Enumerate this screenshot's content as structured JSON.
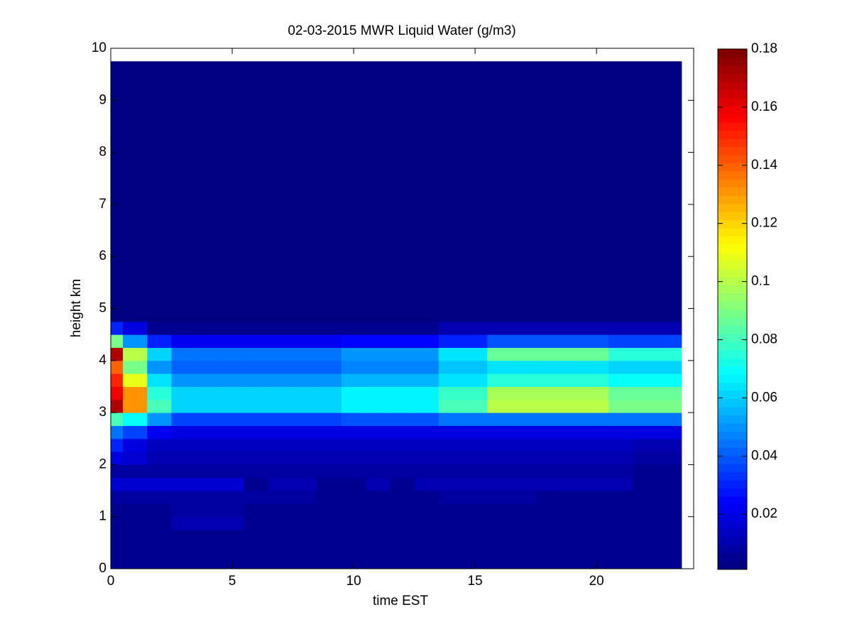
{
  "chart_data": {
    "type": "heatmap",
    "title": "02-03-2015 MWR Liquid Water (g/m3)",
    "x_label": "time EST",
    "y_label": "height km",
    "xlim": [
      0,
      24
    ],
    "xticks": [
      0,
      5,
      10,
      15,
      20
    ],
    "ylim": [
      0,
      10
    ],
    "yticks": [
      0,
      1,
      2,
      3,
      4,
      5,
      6,
      7,
      8,
      9,
      10
    ],
    "clim": [
      0.001,
      0.18
    ],
    "cticks": [
      0.02,
      0.04,
      0.06,
      0.08,
      0.1,
      0.12,
      0.14,
      0.16,
      0.18
    ],
    "colormap": "jet",
    "x_bins": [
      0,
      0.5,
      1.5,
      2.5,
      3.5,
      4.5,
      5.5,
      6.5,
      7.5,
      8.5,
      9.5,
      10.5,
      11.5,
      12.5,
      13.5,
      14.5,
      15.5,
      16.5,
      17.5,
      18.5,
      19.5,
      20.5,
      21.5,
      22.5,
      23.5
    ],
    "y_bins": [
      0,
      0.25,
      0.5,
      0.75,
      1,
      1.25,
      1.5,
      1.75,
      2,
      2.25,
      2.5,
      2.75,
      3,
      3.25,
      3.5,
      3.75,
      4,
      4.25,
      4.5,
      4.75,
      9.75
    ],
    "values": [
      [
        0.004,
        0.004,
        0.004,
        0.004,
        0.004,
        0.004,
        0.004,
        0.004,
        0.004,
        0.004,
        0.004,
        0.004,
        0.004,
        0.004,
        0.004,
        0.004,
        0.004,
        0.004,
        0.004,
        0.004,
        0.004,
        0.004,
        0.004,
        0.004
      ],
      [
        0.004,
        0.004,
        0.004,
        0.004,
        0.004,
        0.004,
        0.004,
        0.004,
        0.004,
        0.004,
        0.004,
        0.004,
        0.004,
        0.004,
        0.004,
        0.004,
        0.004,
        0.004,
        0.004,
        0.004,
        0.004,
        0.004,
        0.004,
        0.004
      ],
      [
        0.004,
        0.004,
        0.004,
        0.004,
        0.004,
        0.004,
        0.004,
        0.004,
        0.004,
        0.004,
        0.004,
        0.004,
        0.004,
        0.004,
        0.004,
        0.004,
        0.004,
        0.004,
        0.004,
        0.004,
        0.004,
        0.004,
        0.004,
        0.004
      ],
      [
        0.004,
        0.004,
        0.004,
        0.01,
        0.01,
        0.01,
        0.004,
        0.004,
        0.004,
        0.004,
        0.004,
        0.004,
        0.004,
        0.004,
        0.004,
        0.004,
        0.004,
        0.004,
        0.004,
        0.004,
        0.004,
        0.004,
        0.004,
        0.004
      ],
      [
        0.004,
        0.004,
        0.004,
        0.008,
        0.008,
        0.008,
        0.004,
        0.004,
        0.004,
        0.004,
        0.004,
        0.004,
        0.004,
        0.004,
        0.004,
        0.004,
        0.004,
        0.004,
        0.004,
        0.004,
        0.004,
        0.004,
        0.004,
        0.004
      ],
      [
        0.008,
        0.008,
        0.008,
        0.008,
        0.008,
        0.008,
        0.008,
        0.008,
        0.008,
        0.004,
        0.004,
        0.004,
        0.004,
        0.004,
        0.008,
        0.008,
        0.008,
        0.008,
        0.004,
        0.004,
        0.004,
        0.004,
        0.004,
        0.004
      ],
      [
        0.015,
        0.015,
        0.015,
        0.015,
        0.015,
        0.015,
        0.006,
        0.012,
        0.012,
        0.004,
        0.004,
        0.012,
        0.004,
        0.012,
        0.012,
        0.012,
        0.012,
        0.012,
        0.012,
        0.012,
        0.012,
        0.012,
        0.004,
        0.004
      ],
      [
        0.008,
        0.008,
        0.008,
        0.008,
        0.008,
        0.008,
        0.008,
        0.008,
        0.008,
        0.008,
        0.008,
        0.008,
        0.008,
        0.008,
        0.008,
        0.008,
        0.008,
        0.008,
        0.008,
        0.008,
        0.008,
        0.008,
        0.004,
        0.004
      ],
      [
        0.02,
        0.015,
        0.012,
        0.012,
        0.012,
        0.012,
        0.012,
        0.012,
        0.012,
        0.012,
        0.012,
        0.012,
        0.012,
        0.012,
        0.012,
        0.012,
        0.012,
        0.012,
        0.012,
        0.012,
        0.012,
        0.012,
        0.008,
        0.008
      ],
      [
        0.03,
        0.02,
        0.014,
        0.014,
        0.014,
        0.014,
        0.014,
        0.014,
        0.014,
        0.014,
        0.014,
        0.014,
        0.014,
        0.014,
        0.014,
        0.014,
        0.014,
        0.014,
        0.014,
        0.014,
        0.014,
        0.014,
        0.012,
        0.012
      ],
      [
        0.045,
        0.035,
        0.022,
        0.018,
        0.018,
        0.018,
        0.018,
        0.018,
        0.018,
        0.018,
        0.018,
        0.018,
        0.018,
        0.018,
        0.02,
        0.02,
        0.02,
        0.02,
        0.02,
        0.02,
        0.02,
        0.02,
        0.02,
        0.02
      ],
      [
        0.08,
        0.07,
        0.05,
        0.035,
        0.035,
        0.035,
        0.035,
        0.035,
        0.035,
        0.035,
        0.04,
        0.04,
        0.04,
        0.04,
        0.045,
        0.045,
        0.045,
        0.045,
        0.045,
        0.045,
        0.045,
        0.045,
        0.045,
        0.045
      ],
      [
        0.17,
        0.13,
        0.08,
        0.062,
        0.062,
        0.062,
        0.062,
        0.062,
        0.062,
        0.062,
        0.068,
        0.068,
        0.068,
        0.068,
        0.08,
        0.08,
        0.1,
        0.1,
        0.1,
        0.1,
        0.1,
        0.088,
        0.088,
        0.088
      ],
      [
        0.16,
        0.13,
        0.075,
        0.06,
        0.06,
        0.06,
        0.06,
        0.06,
        0.06,
        0.06,
        0.066,
        0.066,
        0.066,
        0.066,
        0.078,
        0.078,
        0.098,
        0.098,
        0.098,
        0.098,
        0.098,
        0.085,
        0.085,
        0.085
      ],
      [
        0.15,
        0.11,
        0.065,
        0.05,
        0.05,
        0.05,
        0.05,
        0.05,
        0.05,
        0.05,
        0.055,
        0.055,
        0.055,
        0.055,
        0.065,
        0.065,
        0.075,
        0.075,
        0.075,
        0.075,
        0.075,
        0.07,
        0.07,
        0.07
      ],
      [
        0.14,
        0.09,
        0.05,
        0.042,
        0.042,
        0.042,
        0.042,
        0.042,
        0.042,
        0.042,
        0.048,
        0.048,
        0.048,
        0.048,
        0.058,
        0.058,
        0.065,
        0.065,
        0.065,
        0.065,
        0.065,
        0.06,
        0.06,
        0.06
      ],
      [
        0.17,
        0.1,
        0.06,
        0.045,
        0.045,
        0.045,
        0.045,
        0.045,
        0.045,
        0.045,
        0.05,
        0.05,
        0.05,
        0.05,
        0.065,
        0.065,
        0.085,
        0.085,
        0.085,
        0.085,
        0.085,
        0.075,
        0.075,
        0.075
      ],
      [
        0.09,
        0.05,
        0.03,
        0.022,
        0.022,
        0.022,
        0.022,
        0.022,
        0.022,
        0.022,
        0.025,
        0.025,
        0.025,
        0.025,
        0.03,
        0.03,
        0.04,
        0.04,
        0.04,
        0.04,
        0.04,
        0.035,
        0.035,
        0.035
      ],
      [
        0.03,
        0.02,
        0.005,
        0.004,
        0.004,
        0.004,
        0.004,
        0.004,
        0.004,
        0.004,
        0.004,
        0.004,
        0.004,
        0.004,
        0.01,
        0.01,
        0.01,
        0.01,
        0.01,
        0.01,
        0.01,
        0.01,
        0.01,
        0.01
      ],
      [
        0.001,
        0.001,
        0.001,
        0.001,
        0.001,
        0.001,
        0.001,
        0.001,
        0.001,
        0.001,
        0.001,
        0.001,
        0.001,
        0.001,
        0.001,
        0.001,
        0.001,
        0.001,
        0.001,
        0.001,
        0.001,
        0.001,
        0.001,
        0.001
      ]
    ]
  }
}
